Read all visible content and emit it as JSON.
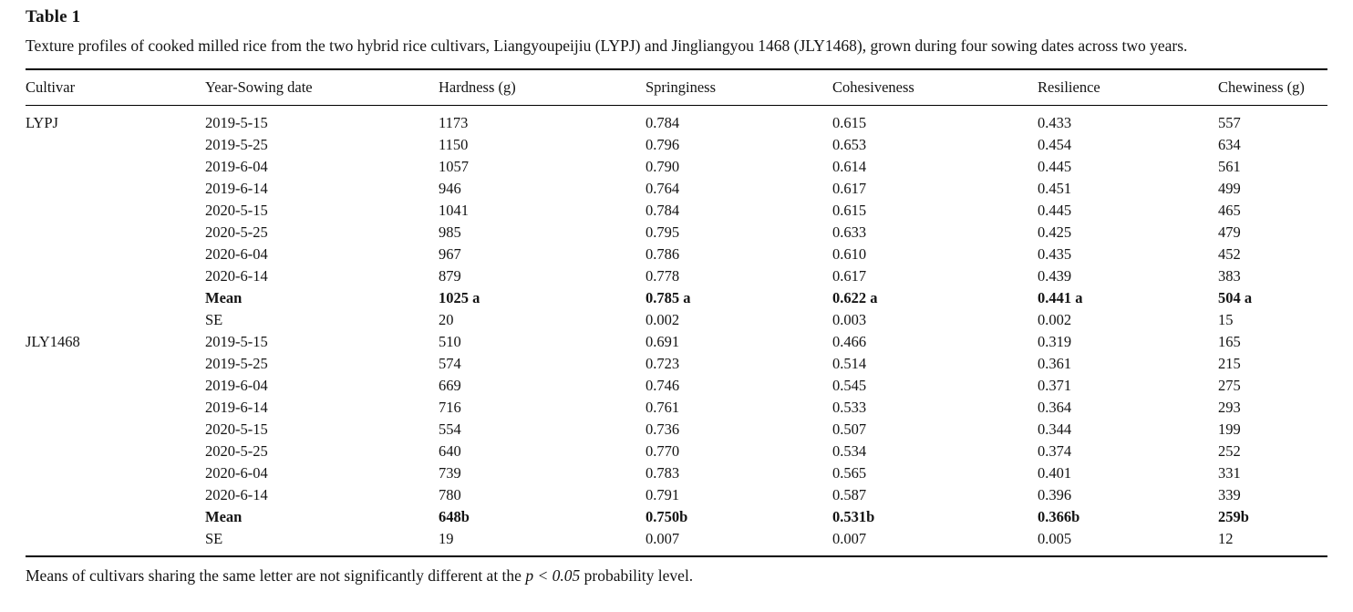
{
  "title": "Table 1",
  "caption": "Texture profiles of cooked milled rice from the two hybrid rice cultivars, Liangyoupeijiu (LYPJ) and Jingliangyou 1468 (JLY1468), grown during four sowing dates across two years.",
  "table": {
    "columns": [
      "Cultivar",
      "Year-Sowing date",
      "Hardness (g)",
      "Springiness",
      "Cohesiveness",
      "Resilience",
      "Chewiness (g)"
    ],
    "sections": [
      {
        "cultivar": "LYPJ",
        "rows": [
          {
            "label": "2019-5-15",
            "values": [
              "1173",
              "0.784",
              "0.615",
              "0.433",
              "557"
            ],
            "bold": false
          },
          {
            "label": "2019-5-25",
            "values": [
              "1150",
              "0.796",
              "0.653",
              "0.454",
              "634"
            ],
            "bold": false
          },
          {
            "label": "2019-6-04",
            "values": [
              "1057",
              "0.790",
              "0.614",
              "0.445",
              "561"
            ],
            "bold": false
          },
          {
            "label": "2019-6-14",
            "values": [
              "946",
              "0.764",
              "0.617",
              "0.451",
              "499"
            ],
            "bold": false
          },
          {
            "label": "2020-5-15",
            "values": [
              "1041",
              "0.784",
              "0.615",
              "0.445",
              "465"
            ],
            "bold": false
          },
          {
            "label": "2020-5-25",
            "values": [
              "985",
              "0.795",
              "0.633",
              "0.425",
              "479"
            ],
            "bold": false
          },
          {
            "label": "2020-6-04",
            "values": [
              "967",
              "0.786",
              "0.610",
              "0.435",
              "452"
            ],
            "bold": false
          },
          {
            "label": "2020-6-14",
            "values": [
              "879",
              "0.778",
              "0.617",
              "0.439",
              "383"
            ],
            "bold": false
          },
          {
            "label": "Mean",
            "values": [
              "1025 a",
              "0.785 a",
              "0.622 a",
              "0.441 a",
              "504 a"
            ],
            "bold": true
          },
          {
            "label": "SE",
            "values": [
              "20",
              "0.002",
              "0.003",
              "0.002",
              "15"
            ],
            "bold": false
          }
        ]
      },
      {
        "cultivar": "JLY1468",
        "rows": [
          {
            "label": "2019-5-15",
            "values": [
              "510",
              "0.691",
              "0.466",
              "0.319",
              "165"
            ],
            "bold": false
          },
          {
            "label": "2019-5-25",
            "values": [
              "574",
              "0.723",
              "0.514",
              "0.361",
              "215"
            ],
            "bold": false
          },
          {
            "label": "2019-6-04",
            "values": [
              "669",
              "0.746",
              "0.545",
              "0.371",
              "275"
            ],
            "bold": false
          },
          {
            "label": "2019-6-14",
            "values": [
              "716",
              "0.761",
              "0.533",
              "0.364",
              "293"
            ],
            "bold": false
          },
          {
            "label": "2020-5-15",
            "values": [
              "554",
              "0.736",
              "0.507",
              "0.344",
              "199"
            ],
            "bold": false
          },
          {
            "label": "2020-5-25",
            "values": [
              "640",
              "0.770",
              "0.534",
              "0.374",
              "252"
            ],
            "bold": false
          },
          {
            "label": "2020-6-04",
            "values": [
              "739",
              "0.783",
              "0.565",
              "0.401",
              "331"
            ],
            "bold": false
          },
          {
            "label": "2020-6-14",
            "values": [
              "780",
              "0.791",
              "0.587",
              "0.396",
              "339"
            ],
            "bold": false
          },
          {
            "label": "Mean",
            "values": [
              "648b",
              "0.750b",
              "0.531b",
              "0.366b",
              "259b"
            ],
            "bold": true
          },
          {
            "label": "SE",
            "values": [
              "19",
              "0.007",
              "0.007",
              "0.005",
              "12"
            ],
            "bold": false
          }
        ]
      }
    ]
  },
  "footnote": {
    "prefix": "Means of cultivars sharing the same letter are not significantly different at the ",
    "italic": "p < 0.05",
    "suffix": " probability level."
  }
}
